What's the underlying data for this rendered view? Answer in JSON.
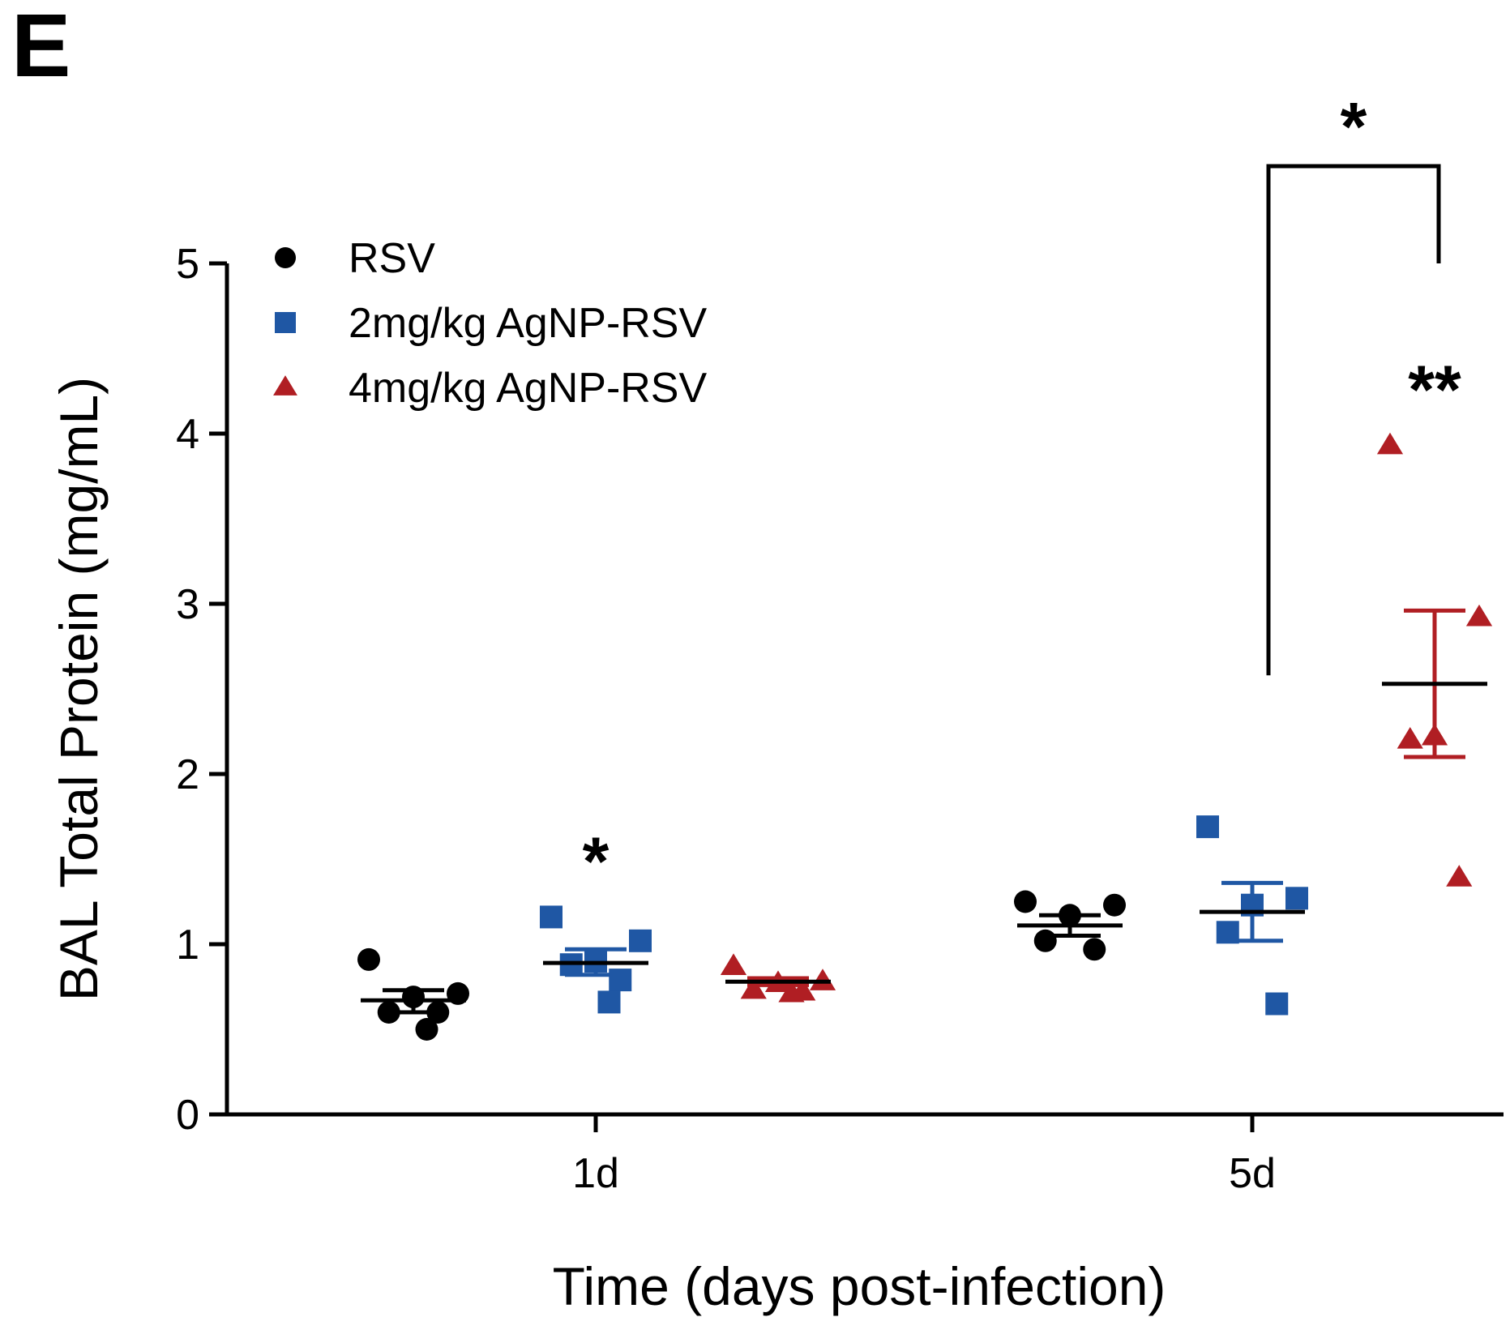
{
  "panel_label": "E",
  "chart_data": {
    "type": "scatter",
    "title": "",
    "xlabel": "Time (days post-infection)",
    "ylabel": "BAL Total Protein (mg/mL)",
    "ylim": [
      0,
      5
    ],
    "yticks": [
      "0",
      "1",
      "2",
      "3",
      "4",
      "5"
    ],
    "categories": [
      "1d",
      "5d"
    ],
    "grid": false,
    "legend_position": "top-left",
    "series": [
      {
        "name": "RSV",
        "marker": "circle",
        "color": "#000000",
        "groups": [
          {
            "category": "1d",
            "points": [
              0.91,
              0.71,
              0.69,
              0.6,
              0.6,
              0.5
            ],
            "mean": 0.67,
            "sem_low": 0.6,
            "sem_high": 0.73
          },
          {
            "category": "5d",
            "points": [
              1.25,
              1.23,
              1.17,
              1.02,
              0.97
            ],
            "mean": 1.11,
            "sem_low": 1.05,
            "sem_high": 1.17
          }
        ]
      },
      {
        "name": "2mg/kg AgNP-RSV",
        "marker": "square",
        "color": "#1f57a4",
        "groups": [
          {
            "category": "1d",
            "points": [
              1.16,
              1.02,
              0.9,
              0.88,
              0.79,
              0.66
            ],
            "mean": 0.89,
            "sem_low": 0.82,
            "sem_high": 0.97
          },
          {
            "category": "5d",
            "points": [
              1.69,
              1.27,
              1.23,
              1.07,
              0.65
            ],
            "mean": 1.19,
            "sem_low": 1.02,
            "sem_high": 1.36
          }
        ]
      },
      {
        "name": "4mg/kg AgNP-RSV",
        "marker": "triangle",
        "color": "#b01e23",
        "groups": [
          {
            "category": "1d",
            "points": [
              0.87,
              0.78,
              0.77,
              0.73,
              0.72,
              0.71
            ],
            "mean": 0.78,
            "sem_low": 0.76,
            "sem_high": 0.8
          },
          {
            "category": "5d",
            "points": [
              3.93,
              2.92,
              2.22,
              2.2,
              1.39
            ],
            "mean": 2.53,
            "sem_low": 2.1,
            "sem_high": 2.96
          }
        ]
      }
    ],
    "annotations": [
      {
        "text": "*",
        "type": "group",
        "series": "2mg/kg AgNP-RSV",
        "category": "1d"
      },
      {
        "text": "**",
        "type": "group",
        "series": "4mg/kg AgNP-RSV",
        "category": "5d"
      },
      {
        "text": "*",
        "type": "bracket",
        "from_series": "2mg/kg AgNP-RSV",
        "to_series": "4mg/kg AgNP-RSV",
        "category": "5d"
      }
    ]
  }
}
